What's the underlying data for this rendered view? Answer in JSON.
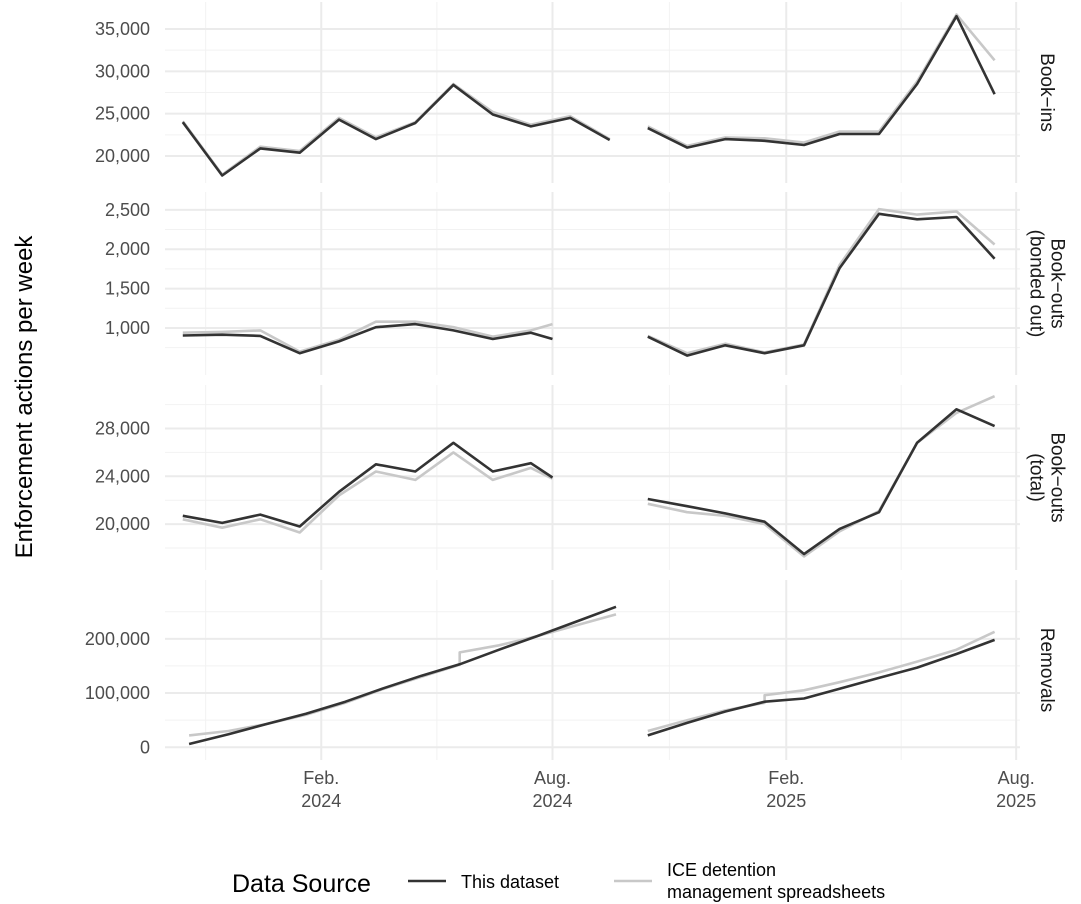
{
  "chart_data": {
    "type": "line",
    "ylabel": "Enforcement actions per week",
    "legend": {
      "title": "Data Source",
      "position": "bottom",
      "entries": [
        {
          "name": "This dataset",
          "color": "#333333"
        },
        {
          "name": "ICE detention management spreadsheets",
          "lines": [
            "ICE detention",
            "management spreadsheets"
          ],
          "color": "#c8c8c8"
        }
      ]
    },
    "x_ticks": [
      {
        "date": "2024-02-01",
        "lines": [
          "Feb.",
          "2024"
        ]
      },
      {
        "date": "2024-08-01",
        "lines": [
          "Aug.",
          "2024"
        ]
      },
      {
        "date": "2025-02-01",
        "lines": [
          "Feb.",
          "2025"
        ]
      },
      {
        "date": "2025-08-01",
        "lines": [
          "Aug.",
          "2025"
        ]
      }
    ],
    "xlim": [
      "2023-10-01",
      "2025-08-04"
    ],
    "grid": true,
    "panels": [
      {
        "strip": [
          "Book−ins"
        ],
        "ylim": [
          18000,
          37000
        ],
        "y_ticks": [
          {
            "v": 20000,
            "label": "20,000"
          },
          {
            "v": 25000,
            "label": "25,000"
          },
          {
            "v": 30000,
            "label": "30,000"
          },
          {
            "v": 35000,
            "label": "35,000"
          }
        ],
        "series": [
          {
            "name": "ICE detention management spreadsheets",
            "segments": [
              {
                "x": [
                  "2023-10-15",
                  "2023-11-15",
                  "2023-12-15",
                  "2024-01-15",
                  "2024-02-15",
                  "2024-03-15",
                  "2024-04-15",
                  "2024-05-15",
                  "2024-06-15",
                  "2024-07-15",
                  "2024-08-15",
                  "2024-09-15"
                ],
                "y": [
                  24100,
                  17800,
                  21100,
                  20600,
                  24500,
                  22200,
                  24000,
                  28500,
                  25200,
                  23700,
                  24700,
                  22000
                ]
              },
              {
                "x": [
                  "2024-10-15",
                  "2024-11-15",
                  "2024-12-15",
                  "2025-01-15",
                  "2025-02-15",
                  "2025-03-15",
                  "2025-04-15",
                  "2025-05-15",
                  "2025-06-15",
                  "2025-07-15"
                ],
                "y": [
                  23500,
                  21200,
                  22200,
                  22100,
                  21600,
                  22900,
                  22900,
                  28800,
                  36700,
                  31300
                ]
              }
            ]
          },
          {
            "name": "This dataset",
            "segments": [
              {
                "x": [
                  "2023-10-15",
                  "2023-11-15",
                  "2023-12-15",
                  "2024-01-15",
                  "2024-02-15",
                  "2024-03-15",
                  "2024-04-15",
                  "2024-05-15",
                  "2024-06-15",
                  "2024-07-15",
                  "2024-08-15",
                  "2024-09-15"
                ],
                "y": [
                  24000,
                  17700,
                  20900,
                  20400,
                  24300,
                  22000,
                  23900,
                  28400,
                  24900,
                  23500,
                  24500,
                  21900
                ]
              },
              {
                "x": [
                  "2024-10-15",
                  "2024-11-15",
                  "2024-12-15",
                  "2025-01-15",
                  "2025-02-15",
                  "2025-03-15",
                  "2025-04-15",
                  "2025-05-15",
                  "2025-06-15",
                  "2025-07-15"
                ],
                "y": [
                  23300,
                  21000,
                  22000,
                  21800,
                  21300,
                  22600,
                  22600,
                  28500,
                  36500,
                  27300
                ]
              }
            ]
          }
        ]
      },
      {
        "strip": [
          "Book−outs",
          "(bonded out)"
        ],
        "ylim": [
          530,
          2600
        ],
        "y_ticks": [
          {
            "v": 1000,
            "label": "1,000"
          },
          {
            "v": 1500,
            "label": "1,500"
          },
          {
            "v": 2000,
            "label": "2,000"
          },
          {
            "v": 2500,
            "label": "2,500"
          }
        ],
        "series": [
          {
            "name": "ICE detention management spreadsheets",
            "segments": [
              {
                "x": [
                  "2023-10-15",
                  "2023-11-15",
                  "2023-12-15",
                  "2024-01-15",
                  "2024-02-15",
                  "2024-03-15",
                  "2024-04-15",
                  "2024-05-15",
                  "2024-06-15",
                  "2024-07-15",
                  "2024-08-01"
                ],
                "y": [
                  940,
                  950,
                  970,
                  700,
                  850,
                  1080,
                  1080,
                  1010,
                  890,
                  970,
                  1050
                ]
              },
              {
                "x": [
                  "2024-10-15",
                  "2024-11-15",
                  "2024-12-15",
                  "2025-01-15",
                  "2025-02-15",
                  "2025-03-15",
                  "2025-04-15",
                  "2025-05-15",
                  "2025-06-15",
                  "2025-07-15"
                ],
                "y": [
                  900,
                  680,
                  800,
                  690,
                  790,
                  1800,
                  2510,
                  2440,
                  2480,
                  2060
                ]
              }
            ]
          },
          {
            "name": "This dataset",
            "segments": [
              {
                "x": [
                  "2023-10-15",
                  "2023-11-15",
                  "2023-12-15",
                  "2024-01-15",
                  "2024-02-15",
                  "2024-03-15",
                  "2024-04-15",
                  "2024-05-15",
                  "2024-06-15",
                  "2024-07-15",
                  "2024-08-01"
                ],
                "y": [
                  905,
                  915,
                  900,
                  680,
                  830,
                  1010,
                  1050,
                  970,
                  860,
                  940,
                  860
                ]
              },
              {
                "x": [
                  "2024-10-15",
                  "2024-11-15",
                  "2024-12-15",
                  "2025-01-15",
                  "2025-02-15",
                  "2025-03-15",
                  "2025-04-15",
                  "2025-05-15",
                  "2025-06-15",
                  "2025-07-15"
                ],
                "y": [
                  890,
                  650,
                  780,
                  680,
                  780,
                  1760,
                  2450,
                  2380,
                  2410,
                  1880
                ]
              }
            ]
          }
        ]
      },
      {
        "strip": [
          "Book−outs",
          "(total)"
        ],
        "ylim": [
          17000,
          30800
        ],
        "y_ticks": [
          {
            "v": 20000,
            "label": "20,000"
          },
          {
            "v": 24000,
            "label": "24,000"
          },
          {
            "v": 28000,
            "label": "28,000"
          }
        ],
        "series": [
          {
            "name": "ICE detention management spreadsheets",
            "segments": [
              {
                "x": [
                  "2023-10-15",
                  "2023-11-15",
                  "2023-12-15",
                  "2024-01-15",
                  "2024-02-15",
                  "2024-03-15",
                  "2024-04-15",
                  "2024-05-15",
                  "2024-06-15",
                  "2024-07-15",
                  "2024-08-01"
                ],
                "y": [
                  20400,
                  19700,
                  20400,
                  19300,
                  22400,
                  24400,
                  23700,
                  26000,
                  23700,
                  24700,
                  23800
                ]
              },
              {
                "x": [
                  "2024-10-15",
                  "2024-11-15",
                  "2024-12-15",
                  "2025-01-15",
                  "2025-02-15",
                  "2025-03-15",
                  "2025-04-15",
                  "2025-05-15",
                  "2025-06-15",
                  "2025-07-15"
                ],
                "y": [
                  21700,
                  21000,
                  20700,
                  20000,
                  17300,
                  19400,
                  21100,
                  26800,
                  29300,
                  30700
                ]
              }
            ]
          },
          {
            "name": "This dataset",
            "segments": [
              {
                "x": [
                  "2023-10-15",
                  "2023-11-15",
                  "2023-12-15",
                  "2024-01-15",
                  "2024-02-15",
                  "2024-03-15",
                  "2024-04-15",
                  "2024-05-15",
                  "2024-06-15",
                  "2024-07-15",
                  "2024-08-01"
                ],
                "y": [
                  20700,
                  20100,
                  20800,
                  19800,
                  22700,
                  25000,
                  24400,
                  26800,
                  24400,
                  25100,
                  23900
                ]
              },
              {
                "x": [
                  "2024-10-15",
                  "2024-11-15",
                  "2024-12-15",
                  "2025-01-15",
                  "2025-02-15",
                  "2025-03-15",
                  "2025-04-15",
                  "2025-05-15",
                  "2025-06-15",
                  "2025-07-15"
                ],
                "y": [
                  22100,
                  21500,
                  20900,
                  20200,
                  17500,
                  19600,
                  21000,
                  26800,
                  29600,
                  28200
                ]
              }
            ]
          }
        ]
      },
      {
        "strip": [
          "Removals"
        ],
        "ylim": [
          -5000,
          290000
        ],
        "y_ticks": [
          {
            "v": 0,
            "label": "0"
          },
          {
            "v": 100000,
            "label": "100,000"
          },
          {
            "v": 200000,
            "label": "200,000"
          }
        ],
        "series": [
          {
            "name": "ICE detention management spreadsheets",
            "segments": [
              {
                "x": [
                  "2023-10-20",
                  "2023-11-20",
                  "2023-12-20",
                  "2024-01-20",
                  "2024-02-20",
                  "2024-03-20",
                  "2024-04-20",
                  "2024-05-20",
                  "2024-05-20",
                  "2024-06-20",
                  "2024-07-20",
                  "2024-08-20",
                  "2024-09-20"
                ],
                "y": [
                  22000,
                  30000,
                  43000,
                  60000,
                  82000,
                  107000,
                  130000,
                  152000,
                  175000,
                  188000,
                  205000,
                  225000,
                  245000
                ]
              },
              {
                "x": [
                  "2024-10-15",
                  "2024-11-15",
                  "2024-12-15",
                  "2025-01-15",
                  "2025-01-15",
                  "2025-02-15",
                  "2025-03-15",
                  "2025-04-15",
                  "2025-05-15",
                  "2025-06-15",
                  "2025-07-15"
                ],
                "y": [
                  30000,
                  50000,
                  68000,
                  82000,
                  96000,
                  105000,
                  120000,
                  138000,
                  158000,
                  180000,
                  213000
                ]
              }
            ]
          },
          {
            "name": "This dataset",
            "segments": [
              {
                "x": [
                  "2023-10-20",
                  "2023-11-20",
                  "2023-12-20",
                  "2024-01-20",
                  "2024-02-20",
                  "2024-03-20",
                  "2024-04-20",
                  "2024-05-20",
                  "2024-06-20",
                  "2024-07-20",
                  "2024-08-20",
                  "2024-09-20"
                ],
                "y": [
                  6000,
                  24000,
                  43000,
                  62000,
                  84000,
                  108000,
                  132000,
                  153000,
                  180000,
                  205000,
                  232000,
                  259000
                ]
              },
              {
                "x": [
                  "2024-10-15",
                  "2024-11-15",
                  "2024-12-15",
                  "2025-01-15",
                  "2025-02-15",
                  "2025-03-15",
                  "2025-04-15",
                  "2025-05-15",
                  "2025-06-15",
                  "2025-07-15"
                ],
                "y": [
                  22000,
                  45000,
                  66000,
                  84000,
                  90000,
                  108000,
                  128000,
                  147000,
                  172000,
                  198000
                ]
              }
            ]
          }
        ]
      }
    ]
  }
}
